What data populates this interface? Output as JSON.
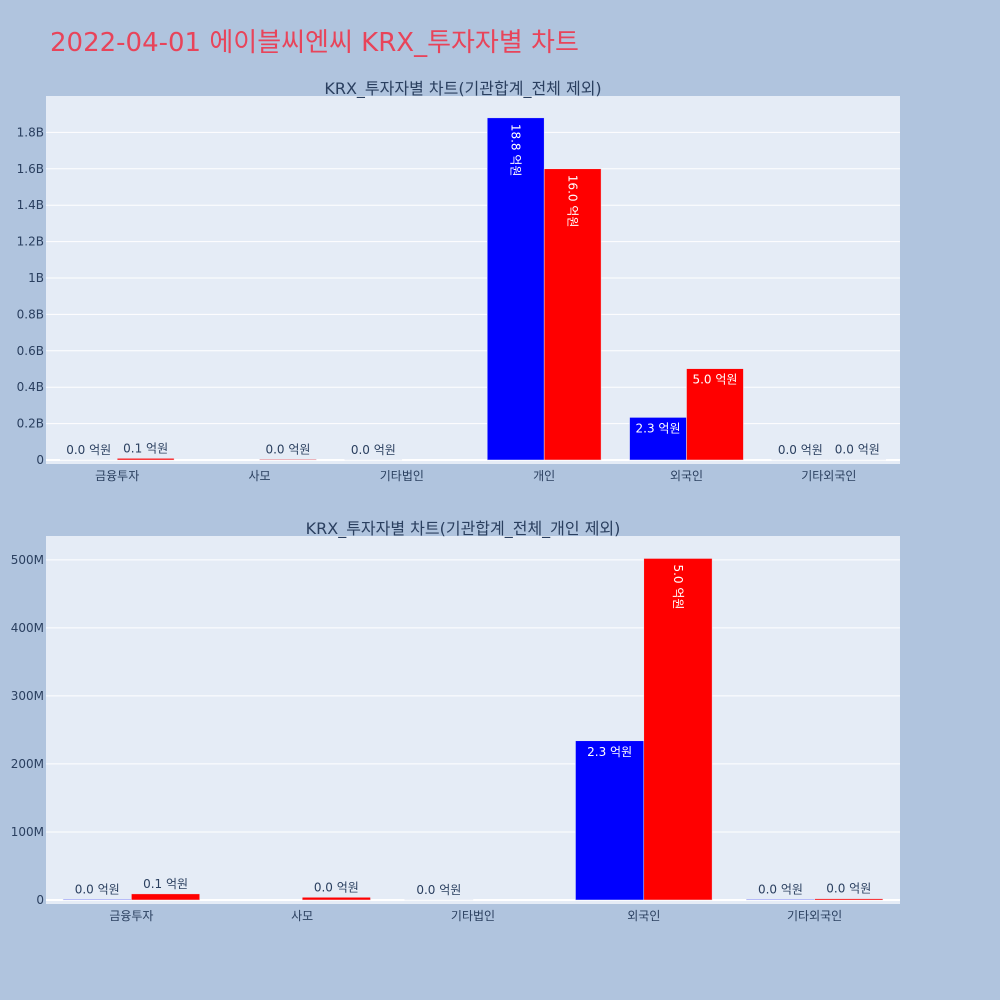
{
  "page_title": "2022-04-01 에이블씨엔씨 KRX_투자자별 차트",
  "colors": {
    "buy": "#0000ff",
    "sell": "#ff0000",
    "title": "#e8445a",
    "background": "#b0c4de",
    "plot": "#e5ecf6"
  },
  "chart_data": [
    {
      "type": "bar",
      "title": "KRX_투자자별 차트(기관합계_전체 제외)",
      "categories": [
        "금융투자",
        "사모",
        "기타법인",
        "개인",
        "외국인",
        "기타외국인"
      ],
      "ylim": [
        0,
        2000000000
      ],
      "yticks": [
        0,
        200000000,
        400000000,
        600000000,
        800000000,
        1000000000,
        1200000000,
        1400000000,
        1600000000,
        1800000000
      ],
      "ytick_labels": [
        "0",
        "0.2B",
        "0.4B",
        "0.6B",
        "0.8B",
        "1B",
        "1.2B",
        "1.4B",
        "1.6B",
        "1.8B"
      ],
      "grid": true,
      "series": [
        {
          "color": "#0000ff",
          "values": [
            1000000,
            null,
            0,
            1880000000,
            234000000,
            1000000
          ],
          "labels": [
            "0.0 억원",
            "",
            "0.0 억원",
            "18.8 억원",
            "2.3 억원",
            "0.0 억원"
          ]
        },
        {
          "color": "#ff0000",
          "values": [
            9000000,
            4000000,
            null,
            1600000000,
            502000000,
            2000000
          ],
          "labels": [
            "0.1 억원",
            "0.0 억원",
            "",
            "16.0 억원",
            "5.0 억원",
            "0.0 억원"
          ]
        }
      ]
    },
    {
      "type": "bar",
      "title": "KRX_투자자별 차트(기관합계_전체_개인 제외)",
      "categories": [
        "금융투자",
        "사모",
        "기타법인",
        "외국인",
        "기타외국인"
      ],
      "ylim": [
        0,
        535000000
      ],
      "yticks": [
        0,
        100000000,
        200000000,
        300000000,
        400000000,
        500000000
      ],
      "ytick_labels": [
        "0",
        "100M",
        "200M",
        "300M",
        "400M",
        "500M"
      ],
      "grid": true,
      "series": [
        {
          "color": "#0000ff",
          "values": [
            1000000,
            null,
            0,
            234000000,
            1000000
          ],
          "labels": [
            "0.0 억원",
            "",
            "0.0 억원",
            "2.3 억원",
            "0.0 억원"
          ]
        },
        {
          "color": "#ff0000",
          "values": [
            9000000,
            4000000,
            null,
            502000000,
            2000000
          ],
          "labels": [
            "0.1 억원",
            "0.0 억원",
            "",
            "5.0 억원",
            "0.0 억원"
          ]
        }
      ]
    }
  ]
}
